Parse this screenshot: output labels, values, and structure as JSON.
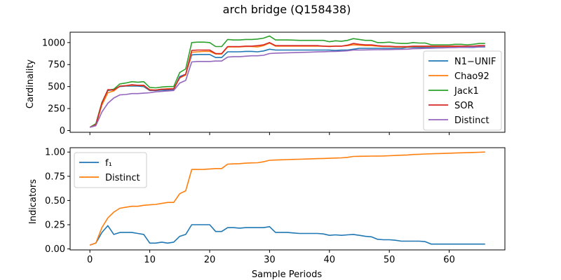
{
  "chart_data": {
    "title": "arch bridge (Q158438)",
    "shared_xlabel": "Sample Periods",
    "x_ticks": [
      0,
      10,
      20,
      30,
      40,
      50,
      60
    ],
    "panels": [
      {
        "type": "line",
        "ylabel": "Cardinality",
        "xlim": [
          -3.3,
          69.3
        ],
        "ylim": [
          -20,
          1118
        ],
        "y_ticks": [
          0,
          250,
          500,
          750,
          1000
        ],
        "legend_position": "lower-right",
        "series": [
          {
            "name": "N1−UNIF",
            "color": "#1f77b4",
            "values": [
              37,
              67,
              300,
              455,
              465,
              500,
              505,
              505,
              505,
              500,
              455,
              455,
              460,
              460,
              465,
              615,
              640,
              860,
              865,
              865,
              865,
              830,
              830,
              895,
              895,
              895,
              900,
              900,
              895,
              905,
              925,
              915,
              915,
              915,
              915,
              915,
              915,
              915,
              915,
              915,
              915,
              910,
              915,
              915,
              925,
              935,
              935,
              935,
              935,
              935,
              935,
              935,
              935,
              945,
              945,
              945,
              945,
              945,
              945,
              945,
              945,
              945,
              945,
              945,
              945,
              950,
              950
            ]
          },
          {
            "name": "Chao92",
            "color": "#ff7f0e",
            "values": [
              37,
              63,
              290,
              430,
              450,
              505,
              510,
              515,
              515,
              510,
              465,
              460,
              470,
              475,
              475,
              600,
              630,
              890,
              895,
              900,
              900,
              870,
              870,
              950,
              950,
              950,
              955,
              955,
              950,
              965,
              995,
              960,
              960,
              960,
              960,
              960,
              960,
              960,
              960,
              960,
              960,
              960,
              960,
              965,
              975,
              970,
              965,
              965,
              960,
              955,
              955,
              950,
              950,
              950,
              955,
              955,
              955,
              955,
              955,
              955,
              955,
              955,
              955,
              955,
              960,
              960,
              960
            ]
          },
          {
            "name": "Jack1",
            "color": "#2ca02c",
            "values": [
              37,
              78,
              320,
              460,
              470,
              530,
              540,
              555,
              550,
              555,
              490,
              485,
              495,
              500,
              500,
              660,
              700,
              1000,
              1005,
              1005,
              1000,
              955,
              955,
              1035,
              1030,
              1030,
              1035,
              1035,
              1040,
              1050,
              1075,
              1030,
              1030,
              1030,
              1028,
              1025,
              1025,
              1025,
              1025,
              1025,
              1010,
              1020,
              1015,
              1025,
              1045,
              1035,
              1025,
              1025,
              1000,
              1000,
              1005,
              995,
              990,
              990,
              1000,
              995,
              995,
              975,
              975,
              975,
              975,
              980,
              980,
              975,
              980,
              990,
              990
            ]
          },
          {
            "name": "SOR",
            "color": "#d62728",
            "values": [
              37,
              66,
              310,
              465,
              460,
              505,
              510,
              520,
              515,
              515,
              460,
              460,
              470,
              470,
              475,
              600,
              640,
              910,
              915,
              915,
              915,
              875,
              875,
              955,
              955,
              955,
              960,
              960,
              965,
              975,
              1000,
              965,
              965,
              965,
              965,
              965,
              965,
              965,
              965,
              960,
              955,
              960,
              960,
              970,
              990,
              980,
              975,
              975,
              965,
              960,
              960,
              955,
              955,
              955,
              960,
              960,
              960,
              960,
              960,
              960,
              960,
              960,
              960,
              960,
              960,
              965,
              965
            ]
          },
          {
            "name": "Distinct",
            "color": "#9467bd",
            "values": [
              37,
              55,
              210,
              310,
              370,
              405,
              410,
              420,
              420,
              425,
              430,
              440,
              445,
              450,
              455,
              540,
              570,
              780,
              785,
              785,
              785,
              790,
              790,
              835,
              840,
              840,
              845,
              850,
              850,
              855,
              875,
              880,
              882,
              884,
              886,
              888,
              890,
              892,
              894,
              896,
              898,
              900,
              902,
              906,
              915,
              916,
              917,
              918,
              919,
              920,
              921,
              922,
              923,
              925,
              930,
              932,
              934,
              936,
              938,
              940,
              942,
              944,
              946,
              948,
              950,
              952,
              955
            ]
          }
        ]
      },
      {
        "type": "line",
        "ylabel": "Indicators",
        "xlim": [
          -3.3,
          69.3
        ],
        "ylim": [
          -0.01,
          1.045
        ],
        "y_ticks": [
          "0.00",
          "0.25",
          "0.50",
          "0.75",
          "1.00"
        ],
        "legend_position": "upper-left",
        "series": [
          {
            "name": "f₁",
            "color": "#1f77b4",
            "values": [
              0.04,
              0.06,
              0.17,
              0.24,
              0.15,
              0.17,
              0.17,
              0.17,
              0.16,
              0.15,
              0.06,
              0.06,
              0.07,
              0.06,
              0.07,
              0.13,
              0.15,
              0.25,
              0.25,
              0.25,
              0.25,
              0.18,
              0.18,
              0.22,
              0.22,
              0.215,
              0.22,
              0.22,
              0.22,
              0.22,
              0.23,
              0.17,
              0.17,
              0.17,
              0.165,
              0.16,
              0.16,
              0.16,
              0.16,
              0.155,
              0.14,
              0.145,
              0.14,
              0.145,
              0.15,
              0.14,
              0.13,
              0.125,
              0.1,
              0.095,
              0.095,
              0.09,
              0.08,
              0.08,
              0.08,
              0.08,
              0.075,
              0.05,
              0.05,
              0.05,
              0.05,
              0.05,
              0.05,
              0.05,
              0.05,
              0.05,
              0.05
            ]
          },
          {
            "name": "Distinct",
            "color": "#ff7f0e",
            "values": [
              0.04,
              0.06,
              0.22,
              0.32,
              0.38,
              0.42,
              0.43,
              0.44,
              0.44,
              0.45,
              0.455,
              0.46,
              0.47,
              0.48,
              0.48,
              0.57,
              0.6,
              0.82,
              0.82,
              0.822,
              0.825,
              0.83,
              0.83,
              0.875,
              0.878,
              0.88,
              0.885,
              0.888,
              0.89,
              0.9,
              0.915,
              0.918,
              0.92,
              0.922,
              0.924,
              0.926,
              0.928,
              0.93,
              0.932,
              0.934,
              0.936,
              0.938,
              0.94,
              0.945,
              0.955,
              0.956,
              0.957,
              0.958,
              0.959,
              0.96,
              0.962,
              0.965,
              0.968,
              0.97,
              0.975,
              0.977,
              0.98,
              0.982,
              0.984,
              0.986,
              0.988,
              0.99,
              0.992,
              0.994,
              0.996,
              0.998,
              1.0
            ]
          }
        ]
      }
    ]
  }
}
